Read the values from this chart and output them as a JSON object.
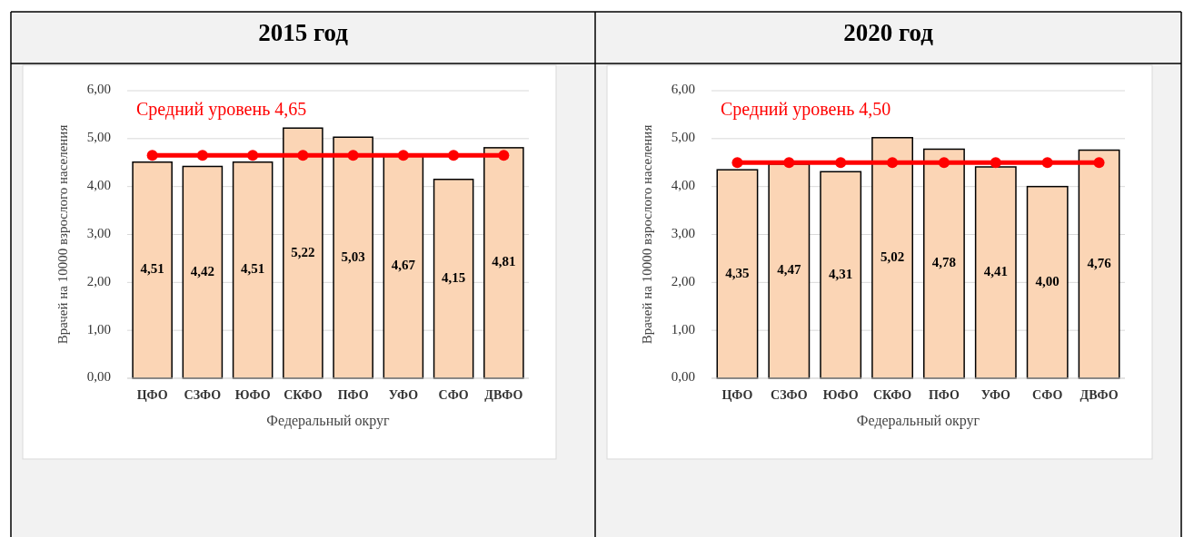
{
  "chart_data": [
    {
      "type": "bar",
      "title": "2015 год",
      "xlabel": "Федеральный округ",
      "ylabel": "Врачей на 10000 взрослого населения",
      "categories": [
        "ЦФО",
        "СЗФО",
        "ЮФО",
        "СКФО",
        "ПФО",
        "УФО",
        "СФО",
        "ДВФО"
      ],
      "ylim": [
        0,
        6
      ],
      "yticks": [
        {
          "value": 0,
          "label": "0,00"
        },
        {
          "value": 1,
          "label": "1,00"
        },
        {
          "value": 2,
          "label": "2,00"
        },
        {
          "value": 3,
          "label": "3,00"
        },
        {
          "value": 4,
          "label": "4,00"
        },
        {
          "value": 5,
          "label": "5,00"
        },
        {
          "value": 6,
          "label": "6,00"
        }
      ],
      "grid": "y",
      "series": [
        {
          "color": "#fbd5b5",
          "values": [
            4.51,
            4.42,
            4.51,
            5.22,
            5.03,
            4.67,
            4.15,
            4.81
          ],
          "value_labels": [
            "4,51",
            "4,42",
            "4,51",
            "5,22",
            "5,03",
            "4,67",
            "4,15",
            "4,81"
          ]
        },
        {
          "type": "line",
          "name": "Средний уровень 4,65",
          "color": "#ff0000",
          "marker": "circle",
          "values": [
            4.65,
            4.65,
            4.65,
            4.65,
            4.65,
            4.65,
            4.65,
            4.65
          ]
        }
      ]
    },
    {
      "type": "bar",
      "title": "2020 год",
      "xlabel": "Федеральный округ",
      "ylabel": "Врачей на 10000 взрослого населения",
      "categories": [
        "ЦФО",
        "СЗФО",
        "ЮФО",
        "СКФО",
        "ПФО",
        "УФО",
        "СФО",
        "ДВФО"
      ],
      "ylim": [
        0,
        6
      ],
      "yticks": [
        {
          "value": 0,
          "label": "0,00"
        },
        {
          "value": 1,
          "label": "1,00"
        },
        {
          "value": 2,
          "label": "2,00"
        },
        {
          "value": 3,
          "label": "3,00"
        },
        {
          "value": 4,
          "label": "4,00"
        },
        {
          "value": 5,
          "label": "5,00"
        },
        {
          "value": 6,
          "label": "6,00"
        }
      ],
      "grid": "y",
      "series": [
        {
          "color": "#fbd5b5",
          "values": [
            4.35,
            4.47,
            4.31,
            5.02,
            4.78,
            4.41,
            4.0,
            4.76
          ],
          "value_labels": [
            "4,35",
            "4,47",
            "4,31",
            "5,02",
            "4,78",
            "4,41",
            "4,00",
            "4,76"
          ]
        },
        {
          "type": "line",
          "name": "Средний уровень 4,50",
          "color": "#ff0000",
          "marker": "circle",
          "values": [
            4.5,
            4.5,
            4.5,
            4.5,
            4.5,
            4.5,
            4.5,
            4.5
          ]
        }
      ]
    }
  ]
}
